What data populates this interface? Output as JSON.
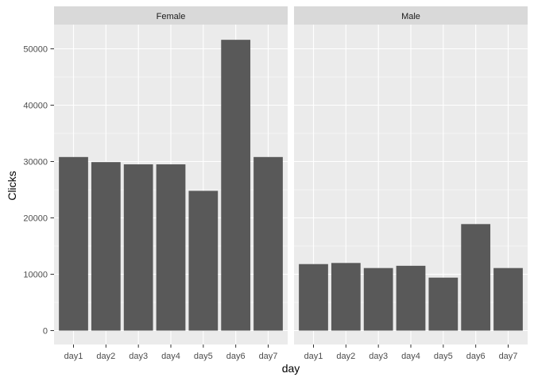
{
  "chart_data": {
    "type": "bar",
    "xlabel": "day",
    "ylabel": "Clicks",
    "ylim": [
      0,
      55000
    ],
    "yticks": [
      0,
      10000,
      20000,
      30000,
      40000,
      50000
    ],
    "categories": [
      "day1",
      "day2",
      "day3",
      "day4",
      "day5",
      "day6",
      "day7"
    ],
    "facets": [
      {
        "label": "Female",
        "values": [
          30800,
          29900,
          29500,
          29500,
          24800,
          51600,
          30800
        ]
      },
      {
        "label": "Male",
        "values": [
          11800,
          12000,
          11100,
          11500,
          9400,
          18900,
          11100
        ]
      }
    ],
    "grid": true,
    "colors": {
      "bar": "#595959",
      "panel": "#ebebeb",
      "strip": "#d9d9d9",
      "grid": "#ffffff"
    }
  }
}
